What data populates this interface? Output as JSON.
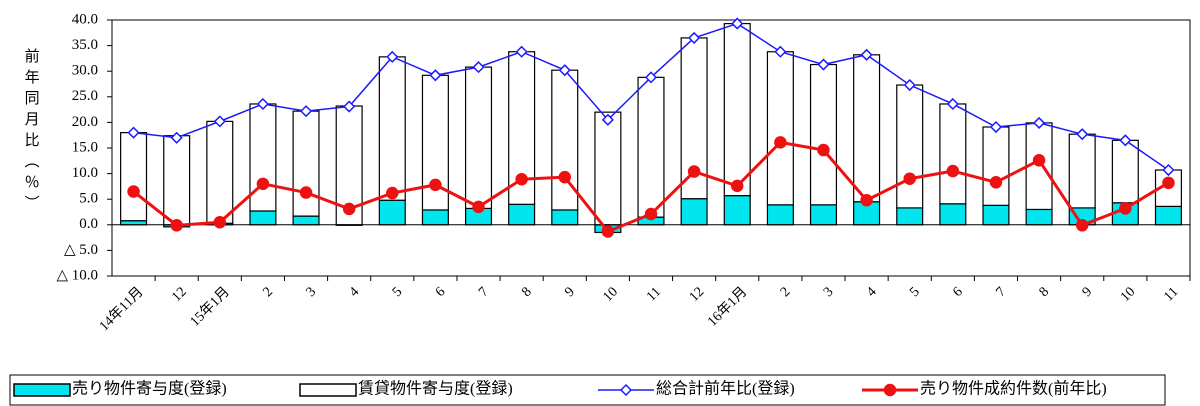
{
  "chart_data": {
    "type": "bar",
    "stacked": true,
    "y_label": "前年同月比（％）",
    "categories": [
      "14年11月",
      "12",
      "15年1月",
      "2",
      "3",
      "4",
      "5",
      "6",
      "7",
      "8",
      "9",
      "10",
      "11",
      "12",
      "16年1月",
      "2",
      "3",
      "4",
      "5",
      "6",
      "7",
      "8",
      "9",
      "10",
      "11"
    ],
    "series": [
      {
        "name": "売り物件寄与度(登録)",
        "type": "bar",
        "color": "#00e5ee",
        "values": [
          0.8,
          -0.4,
          0.3,
          2.7,
          1.7,
          -0.1,
          4.8,
          2.9,
          3.2,
          4.0,
          2.9,
          -1.5,
          1.5,
          5.1,
          5.7,
          3.9,
          3.9,
          4.5,
          3.3,
          4.1,
          3.8,
          3.0,
          3.3,
          4.3,
          3.6
        ]
      },
      {
        "name": "賃貸物件寄与度(登録)",
        "type": "bar",
        "color": "#ffffff",
        "values": [
          17.2,
          17.4,
          19.9,
          20.9,
          20.5,
          23.2,
          28.0,
          26.3,
          27.6,
          29.8,
          27.3,
          22.0,
          27.3,
          31.4,
          33.6,
          29.9,
          27.4,
          28.7,
          24.0,
          19.5,
          15.3,
          16.9,
          14.4,
          12.2,
          7.1
        ]
      },
      {
        "name": "総合計前年比(登録)",
        "type": "line",
        "marker": "diamond",
        "color": "#1a1aff",
        "values": [
          18.0,
          17.0,
          20.2,
          23.6,
          22.2,
          23.1,
          32.8,
          29.2,
          30.8,
          33.8,
          30.2,
          20.5,
          28.8,
          36.5,
          39.3,
          33.8,
          31.3,
          33.2,
          27.3,
          23.6,
          19.1,
          19.9,
          17.7,
          16.5,
          10.7
        ]
      },
      {
        "name": "売り物件成約件数(前年比)",
        "type": "line",
        "marker": "circle",
        "color": "#ee1111",
        "values": [
          6.5,
          -0.1,
          0.5,
          8.0,
          6.3,
          3.1,
          6.2,
          7.8,
          3.5,
          8.9,
          9.3,
          -1.3,
          2.1,
          10.4,
          7.6,
          16.1,
          14.6,
          4.8,
          9.0,
          10.5,
          8.3,
          12.6,
          -0.1,
          3.2,
          8.2
        ]
      }
    ],
    "ylim": [
      -10,
      40
    ],
    "yticks": [
      {
        "value": -10,
        "label": "△ 10.0"
      },
      {
        "value": -5,
        "label": "△ 5.0"
      },
      {
        "value": 0,
        "label": "0.0"
      },
      {
        "value": 5,
        "label": "5.0"
      },
      {
        "value": 10,
        "label": "10.0"
      },
      {
        "value": 15,
        "label": "15.0"
      },
      {
        "value": 20,
        "label": "20.0"
      },
      {
        "value": 25,
        "label": "25.0"
      },
      {
        "value": 30,
        "label": "30.0"
      },
      {
        "value": 35,
        "label": "35.0"
      },
      {
        "value": 40,
        "label": "40.0"
      }
    ],
    "grid": false,
    "legend": "bottom"
  }
}
